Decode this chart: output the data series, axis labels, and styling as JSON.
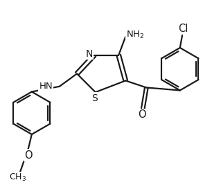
{
  "bg_color": "#ffffff",
  "bond_color": "#1a1a1a",
  "bond_lw": 1.6,
  "font_size": 9.5,
  "label_color": "#1a1a1a",
  "fig_width": 3.19,
  "fig_height": 2.83,
  "dpi": 100,
  "xlim": [
    0,
    9.5
  ],
  "ylim": [
    0,
    8.4
  ]
}
